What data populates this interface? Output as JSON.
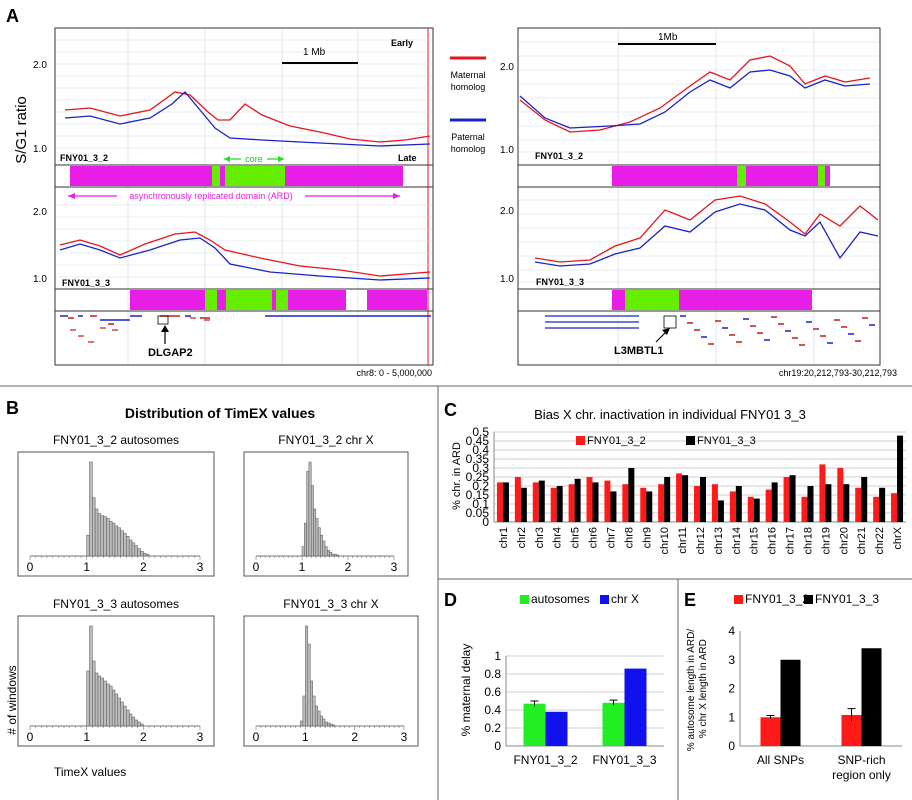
{
  "panelA": {
    "letter": "A",
    "ylabel": "S/G1 ratio",
    "left": {
      "tracks": [
        {
          "name": "FNY01_3_2",
          "ticks": [
            "2.0",
            "1.0"
          ]
        },
        {
          "name": "FNY01_3_3",
          "ticks": [
            "2.0",
            "1.0"
          ]
        }
      ],
      "scale_label": "1 Mb",
      "early_label": "Early",
      "late_label": "Late",
      "core_label": "core",
      "ard_label": "asynchronously replicated domain (ARD)",
      "gene_label": "DLGAP2",
      "coords": "chr8: 0 - 5,000,000"
    },
    "legend": {
      "maternal": "Maternal homolog",
      "paternal": "Paternal homolog",
      "maternal_color": "#e8141c",
      "paternal_color": "#1a23c8"
    },
    "right": {
      "tracks": [
        {
          "name": "FNY01_3_2",
          "ticks": [
            "2.0",
            "1.0"
          ]
        },
        {
          "name": "FNY01_3_3",
          "ticks": [
            "2.0",
            "1.0"
          ]
        }
      ],
      "scale_label": "1Mb",
      "gene_label": "L3MBTL1",
      "coords": "chr19:20,212,793-30,212,793"
    }
  },
  "panelB": {
    "letter": "B",
    "title": "Distribution of TimEX values",
    "ylabel": "# of windows",
    "xlabel": "TimeX values",
    "histograms": [
      {
        "title": "FNY01_3_2 autosomes",
        "ticks": [
          "0",
          "1",
          "2",
          "3"
        ]
      },
      {
        "title": "FNY01_3_2 chr X",
        "ticks": [
          "0",
          "1",
          "2",
          "3"
        ]
      },
      {
        "title": "FNY01_3_3  autosomes",
        "ticks": [
          "0",
          "1",
          "2",
          "3"
        ]
      },
      {
        "title": "FNY01_3_3 chr X",
        "ticks": [
          "0",
          "1",
          "2",
          "3"
        ]
      }
    ]
  },
  "chart_data": [
    {
      "id": "C",
      "type": "bar",
      "title": "Bias X chr. inactivation in individual FNY01 3_3",
      "ylabel": "% chr.  in ARD",
      "ylim": [
        0,
        0.5
      ],
      "yticks": [
        "0",
        "0.05",
        "0.1",
        "0.15",
        "0.2",
        "0.25",
        "0.3",
        "0.35",
        "0.4",
        "0.45",
        "0.5"
      ],
      "categories": [
        "chr1",
        "chr2",
        "chr3",
        "chr4",
        "chr5",
        "chr6",
        "chr7",
        "chr8",
        "chr9",
        "chr10",
        "chr11",
        "chr12",
        "chr13",
        "chr14",
        "chr15",
        "chr16",
        "chr17",
        "chr18",
        "chr19",
        "chr20",
        "chr21",
        "chr22",
        "chrX"
      ],
      "series": [
        {
          "name": "FNY01_3_2",
          "color": "#ff1a1a",
          "values": [
            0.22,
            0.25,
            0.22,
            0.19,
            0.21,
            0.25,
            0.23,
            0.21,
            0.19,
            0.21,
            0.27,
            0.2,
            0.21,
            0.17,
            0.14,
            0.18,
            0.25,
            0.14,
            0.32,
            0.3,
            0.19,
            0.14,
            0.16
          ]
        },
        {
          "name": "FNY01_3_3",
          "color": "#000000",
          "values": [
            0.22,
            0.19,
            0.23,
            0.2,
            0.24,
            0.22,
            0.17,
            0.3,
            0.17,
            0.25,
            0.26,
            0.25,
            0.12,
            0.2,
            0.13,
            0.22,
            0.26,
            0.2,
            0.21,
            0.21,
            0.25,
            0.19,
            0.48
          ]
        }
      ],
      "legend": "top-left"
    },
    {
      "id": "D",
      "type": "bar",
      "ylabel": "% maternal delay",
      "ylim": [
        0,
        1
      ],
      "yticks": [
        "0",
        "0.2",
        "0.4",
        "0.6",
        "0.8",
        "1"
      ],
      "categories": [
        "FNY01_3_2",
        "FNY01_3_3"
      ],
      "series": [
        {
          "name": "autosomes",
          "color": "#22ee22",
          "values": [
            0.47,
            0.48
          ],
          "errors": [
            0.03,
            0.03
          ]
        },
        {
          "name": "chr X",
          "color": "#1111ee",
          "values": [
            0.38,
            0.86
          ]
        }
      ],
      "legend": "top"
    },
    {
      "id": "E",
      "type": "bar",
      "ylabel": "% autosome length in ARD/ % chr  X length in ARD",
      "ylim": [
        0,
        4
      ],
      "yticks": [
        "0",
        "1",
        "2",
        "3",
        "4"
      ],
      "categories": [
        "All SNPs",
        "SNP-rich region only"
      ],
      "category_lines": [
        [
          "All SNPs"
        ],
        [
          "SNP-rich",
          "region only"
        ]
      ],
      "series": [
        {
          "name": "FNY01_3_2",
          "color": "#ff1a1a",
          "values": [
            1.0,
            1.08
          ],
          "errors": [
            0.06,
            0.22
          ]
        },
        {
          "name": "FNY01_3_3",
          "color": "#000000",
          "values": [
            3.0,
            3.4
          ]
        }
      ],
      "legend": "top"
    }
  ]
}
